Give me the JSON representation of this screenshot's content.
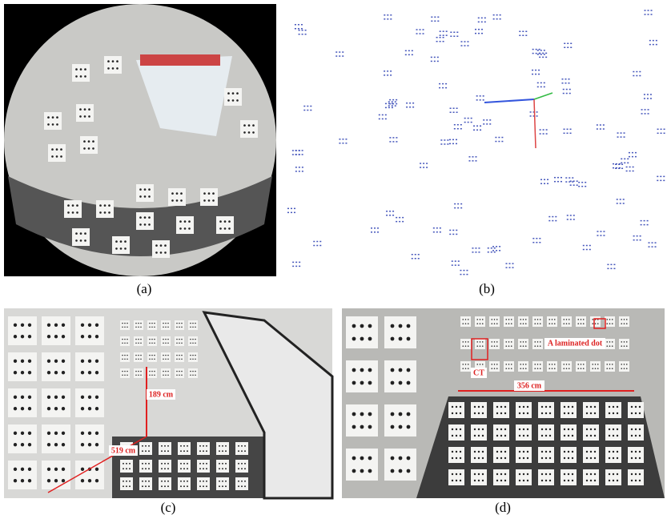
{
  "panels": [
    {
      "label": "(a)"
    },
    {
      "label": "(b)"
    },
    {
      "label": "(c)",
      "annotations": [
        "189 cm",
        "519 cm"
      ]
    },
    {
      "label": "(d)",
      "annotations": [
        "356 cm",
        "CT",
        "A laminated dot"
      ]
    }
  ]
}
